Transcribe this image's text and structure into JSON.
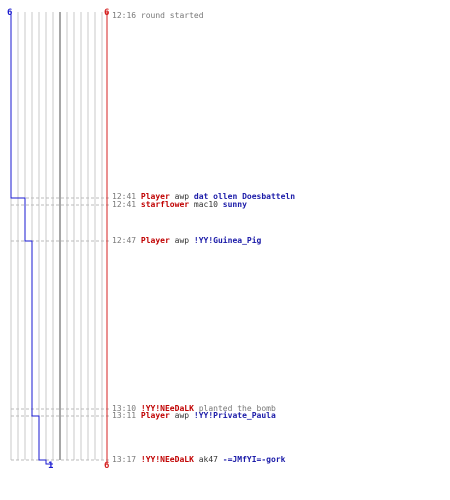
{
  "colors": {
    "team_red": "#d42020",
    "team_blue": "#1a1ad0",
    "grid": "#c8c8c8",
    "axis": "#888888",
    "event_line": "#bbbbbb"
  },
  "scores": {
    "top_left": "6",
    "top_right": "6",
    "bottom_blue": "1",
    "bottom_red": "6"
  },
  "events": [
    {
      "time": "12:16",
      "parts": [
        {
          "text": "round started",
          "style": "grey"
        }
      ]
    },
    {
      "time": "12:41",
      "parts": [
        {
          "text": "Player",
          "style": "red"
        },
        {
          "text": " awp ",
          "style": "plain"
        },
        {
          "text": "dat ollen Doesbatteln",
          "style": "blue"
        }
      ]
    },
    {
      "time": "12:41",
      "parts": [
        {
          "text": "starflower",
          "style": "red"
        },
        {
          "text": " mac10 ",
          "style": "plain"
        },
        {
          "text": "sunny",
          "style": "blue"
        }
      ]
    },
    {
      "time": "12:47",
      "parts": [
        {
          "text": "Player",
          "style": "red"
        },
        {
          "text": " awp ",
          "style": "plain"
        },
        {
          "text": "!YY!Guinea_Pig",
          "style": "blue"
        }
      ]
    },
    {
      "time": "13:10",
      "parts": [
        {
          "text": "!YY!NEeDaLK",
          "style": "red"
        },
        {
          "text": " planted the bomb",
          "style": "grey"
        }
      ]
    },
    {
      "time": "13:11",
      "parts": [
        {
          "text": "Player",
          "style": "red"
        },
        {
          "text": " awp ",
          "style": "plain"
        },
        {
          "text": "!YY!Private_Paula",
          "style": "blue"
        }
      ]
    },
    {
      "time": "13:17",
      "parts": [
        {
          "text": "!YY!NEeDaLK",
          "style": "red"
        },
        {
          "text": " ak47 ",
          "style": "plain"
        },
        {
          "text": "-=JMfYI=-gork",
          "style": "blue"
        }
      ]
    }
  ],
  "alive": {
    "blue_counts": [
      6,
      5,
      4,
      3,
      2,
      1
    ],
    "red_counts": [
      6,
      6,
      6,
      6,
      6,
      6
    ]
  }
}
